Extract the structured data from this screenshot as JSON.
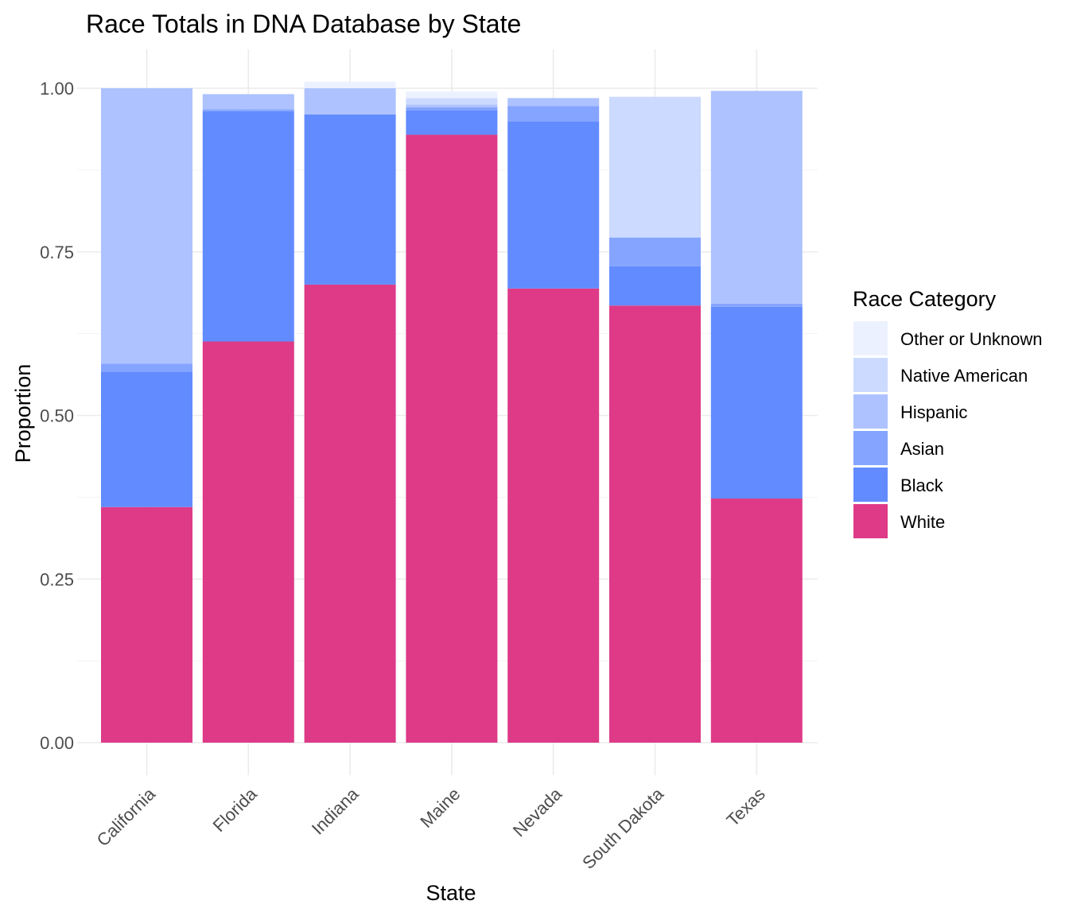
{
  "chart_data": {
    "type": "bar",
    "stacked": true,
    "title": "Race Totals in DNA Database by State",
    "xlabel": "State",
    "ylabel": "Proportion",
    "ylim": [
      0,
      1.05
    ],
    "yticks": [
      "0.00",
      "0.25",
      "0.50",
      "0.75",
      "1.00"
    ],
    "categories": [
      "California",
      "Florida",
      "Indiana",
      "Maine",
      "Nevada",
      "South Dakota",
      "Texas"
    ],
    "legend": {
      "title": "Race Category",
      "position": "right",
      "entries": [
        "Other or Unknown",
        "Native American",
        "Hispanic",
        "Asian",
        "Black",
        "White"
      ]
    },
    "grid": true,
    "series": [
      {
        "name": "White",
        "color": "#de3a87",
        "values": [
          0.36,
          0.613,
          0.7,
          0.929,
          0.694,
          0.668,
          0.373
        ]
      },
      {
        "name": "Black",
        "color": "#628bff",
        "values": [
          0.207,
          0.352,
          0.26,
          0.037,
          0.255,
          0.06,
          0.293
        ]
      },
      {
        "name": "Asian",
        "color": "#84a4ff",
        "values": [
          0.012,
          0.003,
          0.0,
          0.005,
          0.024,
          0.044,
          0.005
        ]
      },
      {
        "name": "Hispanic",
        "color": "#adc2ff",
        "values": [
          0.421,
          0.023,
          0.04,
          0.004,
          0.012,
          0.0,
          0.325
        ]
      },
      {
        "name": "Native American",
        "color": "#cddaff",
        "values": [
          0.0,
          0.0,
          0.0,
          0.01,
          0.0,
          0.215,
          0.0
        ]
      },
      {
        "name": "Other or Unknown",
        "color": "#ecf1ff",
        "values": [
          0.0,
          0.0,
          0.01,
          0.01,
          0.0,
          0.0,
          0.0
        ]
      }
    ]
  }
}
